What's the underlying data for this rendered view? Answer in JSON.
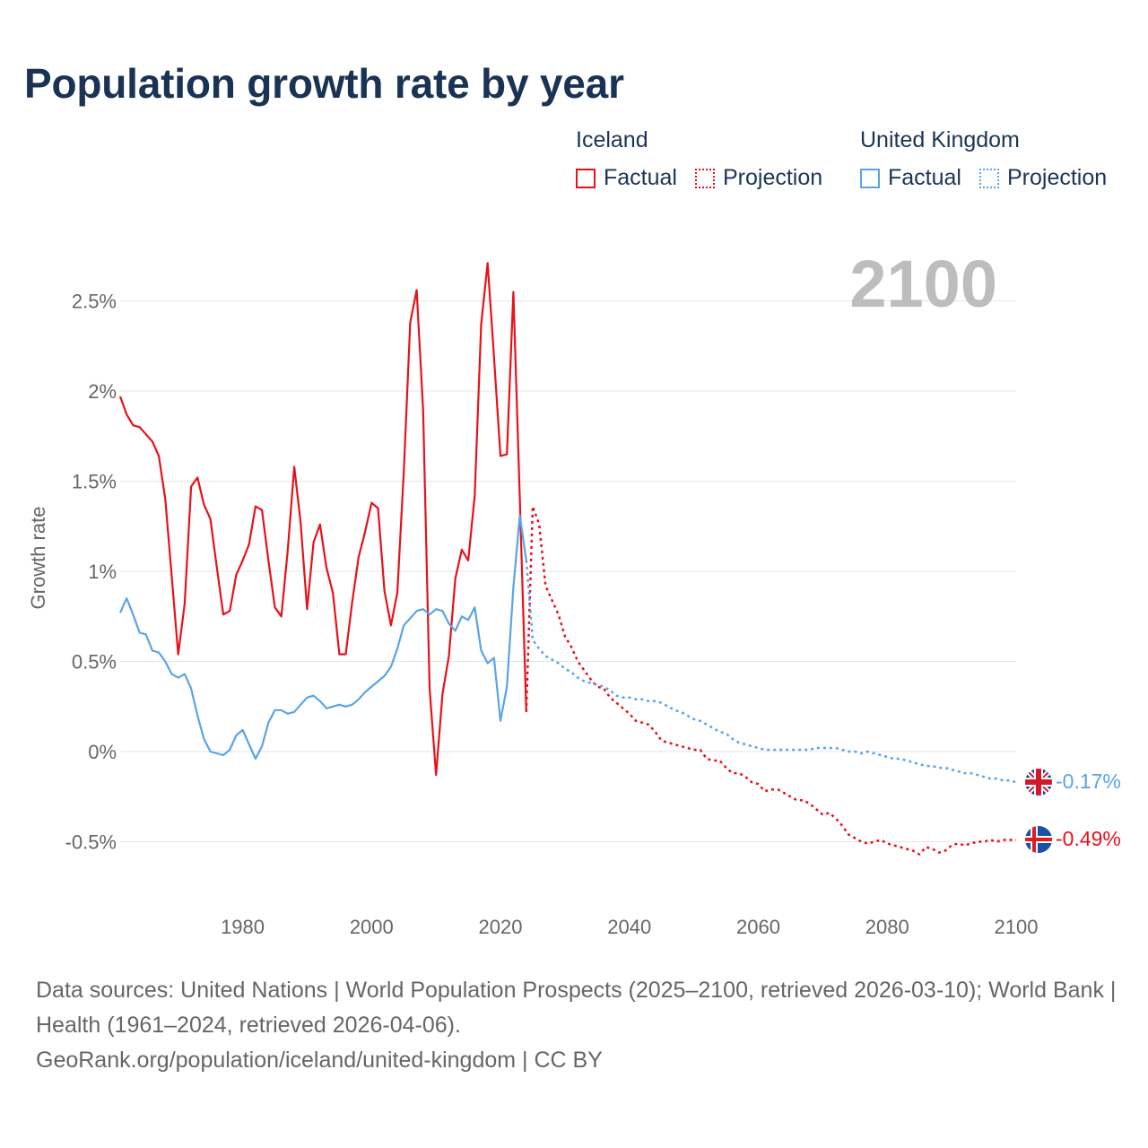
{
  "title": "Population growth rate by year",
  "legend": {
    "groups": [
      {
        "name": "Iceland",
        "color": "#e8111a",
        "factual_label": "Factual",
        "projection_label": "Projection"
      },
      {
        "name": "United Kingdom",
        "color": "#5aa4e6",
        "factual_label": "Factual",
        "projection_label": "Projection"
      }
    ]
  },
  "current_year": "2100",
  "end_labels": {
    "iceland": "-0.49%",
    "united_kingdom": "-0.17%"
  },
  "flags": {
    "iceland": "iceland-flag-icon",
    "united_kingdom": "united-kingdom-flag-icon"
  },
  "sources": {
    "line1": "Data sources: United Nations | World Population Prospects (2025–2100, retrieved 2026-03-10); World Bank | Health (1961–2024, retrieved 2026-04-06).",
    "line2": "GeoRank.org/population/iceland/united-kingdom | CC BY"
  },
  "chart_data": {
    "type": "line",
    "title": "Population growth rate by year",
    "xlabel": "",
    "ylabel": "Growth rate",
    "xlim": [
      1961,
      2100
    ],
    "ylim": [
      -0.7,
      2.75
    ],
    "x_ticks": [
      1980,
      2000,
      2020,
      2040,
      2060,
      2080,
      2100
    ],
    "y_ticks": [
      {
        "value": 2.5,
        "label": "2.5%"
      },
      {
        "value": 2,
        "label": "2%"
      },
      {
        "value": 1.5,
        "label": "1.5%"
      },
      {
        "value": 1,
        "label": "1%"
      },
      {
        "value": 0.5,
        "label": "0.5%"
      },
      {
        "value": 0,
        "label": "0%"
      },
      {
        "value": -0.5,
        "label": "-0.5%"
      }
    ],
    "grid": true,
    "series": [
      {
        "name": "Iceland",
        "kind": "factual",
        "color": "#e8111a",
        "x_start": 1961,
        "values": [
          1.97,
          1.87,
          1.81,
          1.8,
          1.76,
          1.72,
          1.64,
          1.4,
          0.97,
          0.54,
          0.82,
          1.47,
          1.52,
          1.37,
          1.29,
          1.02,
          0.76,
          0.78,
          0.98,
          1.06,
          1.15,
          1.36,
          1.34,
          1.06,
          0.8,
          0.75,
          1.12,
          1.58,
          1.27,
          0.79,
          1.16,
          1.26,
          1.02,
          0.88,
          0.54,
          0.54,
          0.83,
          1.08,
          1.22,
          1.38,
          1.35,
          0.89,
          0.7,
          0.88,
          1.55,
          2.38,
          2.56,
          1.89,
          0.35,
          -0.13,
          0.32,
          0.53,
          0.96,
          1.12,
          1.06,
          1.42,
          2.37,
          2.71,
          2.19,
          1.64,
          1.65,
          2.55,
          1.4,
          0.22
        ]
      },
      {
        "name": "Iceland",
        "kind": "projection",
        "color": "#e8111a",
        "x_start": 2024,
        "values": [
          0.22,
          1.36,
          1.26,
          0.92,
          0.84,
          0.76,
          0.64,
          0.58,
          0.5,
          0.45,
          0.4,
          0.36,
          0.35,
          0.3,
          0.27,
          0.24,
          0.21,
          0.17,
          0.16,
          0.15,
          0.11,
          0.06,
          0.05,
          0.04,
          0.03,
          0.02,
          0.01,
          0.01,
          -0.04,
          -0.05,
          -0.05,
          -0.09,
          -0.12,
          -0.12,
          -0.14,
          -0.17,
          -0.18,
          -0.22,
          -0.21,
          -0.21,
          -0.23,
          -0.25,
          -0.27,
          -0.27,
          -0.29,
          -0.32,
          -0.35,
          -0.34,
          -0.37,
          -0.41,
          -0.46,
          -0.48,
          -0.5,
          -0.51,
          -0.5,
          -0.49,
          -0.51,
          -0.52,
          -0.53,
          -0.54,
          -0.55,
          -0.57,
          -0.53,
          -0.54,
          -0.56,
          -0.55,
          -0.52,
          -0.51,
          -0.52,
          -0.51,
          -0.5,
          -0.5,
          -0.49,
          -0.5,
          -0.49,
          -0.49,
          -0.49
        ]
      },
      {
        "name": "United Kingdom",
        "kind": "factual",
        "color": "#5aa4e6",
        "x_start": 1961,
        "values": [
          0.77,
          0.85,
          0.76,
          0.66,
          0.65,
          0.56,
          0.55,
          0.5,
          0.43,
          0.41,
          0.43,
          0.35,
          0.2,
          0.07,
          0.0,
          -0.01,
          -0.02,
          0.01,
          0.09,
          0.12,
          0.04,
          -0.04,
          0.03,
          0.16,
          0.23,
          0.23,
          0.21,
          0.22,
          0.26,
          0.3,
          0.31,
          0.28,
          0.24,
          0.25,
          0.26,
          0.25,
          0.26,
          0.29,
          0.33,
          0.36,
          0.39,
          0.42,
          0.47,
          0.57,
          0.7,
          0.74,
          0.78,
          0.79,
          0.76,
          0.79,
          0.78,
          0.71,
          0.67,
          0.75,
          0.73,
          0.8,
          0.56,
          0.49,
          0.52,
          0.17,
          0.36,
          0.91,
          1.31,
          1.06
        ]
      },
      {
        "name": "United Kingdom",
        "kind": "projection",
        "color": "#5aa4e6",
        "x_start": 2024,
        "values": [
          1.06,
          0.62,
          0.57,
          0.53,
          0.51,
          0.49,
          0.46,
          0.44,
          0.41,
          0.39,
          0.38,
          0.37,
          0.36,
          0.34,
          0.31,
          0.3,
          0.3,
          0.29,
          0.29,
          0.28,
          0.28,
          0.27,
          0.25,
          0.23,
          0.22,
          0.2,
          0.18,
          0.17,
          0.15,
          0.13,
          0.11,
          0.1,
          0.07,
          0.05,
          0.04,
          0.03,
          0.02,
          0.01,
          0.01,
          0.01,
          0.01,
          0.01,
          0.01,
          0.01,
          0.01,
          0.02,
          0.02,
          0.02,
          0.02,
          0.01,
          0.0,
          0.0,
          -0.01,
          0.0,
          -0.01,
          -0.02,
          -0.03,
          -0.04,
          -0.04,
          -0.05,
          -0.06,
          -0.07,
          -0.08,
          -0.08,
          -0.09,
          -0.09,
          -0.1,
          -0.11,
          -0.12,
          -0.12,
          -0.13,
          -0.14,
          -0.15,
          -0.15,
          -0.16,
          -0.16,
          -0.17
        ]
      }
    ]
  }
}
